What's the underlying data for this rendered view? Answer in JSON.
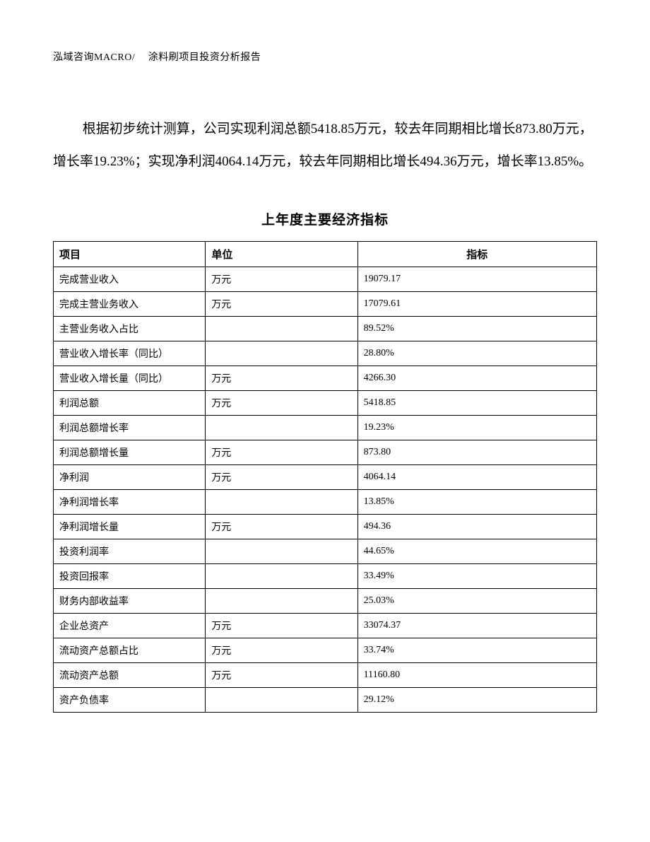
{
  "header": {
    "text": "泓域咨询MACRO/　 涂料刷项目投资分析报告"
  },
  "body_paragraph": "根据初步统计测算，公司实现利润总额5418.85万元，较去年同期相比增长873.80万元，增长率19.23%；实现净利润4064.14万元，较去年同期相比增长494.36万元，增长率13.85%。",
  "table": {
    "title": "上年度主要经济指标",
    "columns": {
      "item": "项目",
      "unit": "单位",
      "value": "指标"
    },
    "rows": [
      {
        "item": "完成营业收入",
        "unit": "万元",
        "value": "19079.17"
      },
      {
        "item": "完成主营业务收入",
        "unit": "万元",
        "value": "17079.61"
      },
      {
        "item": "主营业务收入占比",
        "unit": "",
        "value": "89.52%"
      },
      {
        "item": "营业收入增长率（同比）",
        "unit": "",
        "value": "28.80%"
      },
      {
        "item": "营业收入增长量（同比）",
        "unit": "万元",
        "value": "4266.30"
      },
      {
        "item": "利润总额",
        "unit": "万元",
        "value": "5418.85"
      },
      {
        "item": "利润总额增长率",
        "unit": "",
        "value": "19.23%"
      },
      {
        "item": "利润总额增长量",
        "unit": "万元",
        "value": "873.80"
      },
      {
        "item": "净利润",
        "unit": "万元",
        "value": "4064.14"
      },
      {
        "item": "净利润增长率",
        "unit": "",
        "value": "13.85%"
      },
      {
        "item": "净利润增长量",
        "unit": "万元",
        "value": "494.36"
      },
      {
        "item": "投资利润率",
        "unit": "",
        "value": "44.65%"
      },
      {
        "item": "投资回报率",
        "unit": "",
        "value": "33.49%"
      },
      {
        "item": "财务内部收益率",
        "unit": "",
        "value": "25.03%"
      },
      {
        "item": "企业总资产",
        "unit": "万元",
        "value": "33074.37"
      },
      {
        "item": "流动资产总额占比",
        "unit": "万元",
        "value": "33.74%"
      },
      {
        "item": "流动资产总额",
        "unit": "万元",
        "value": "11160.80"
      },
      {
        "item": "资产负债率",
        "unit": "",
        "value": "29.12%"
      }
    ]
  }
}
